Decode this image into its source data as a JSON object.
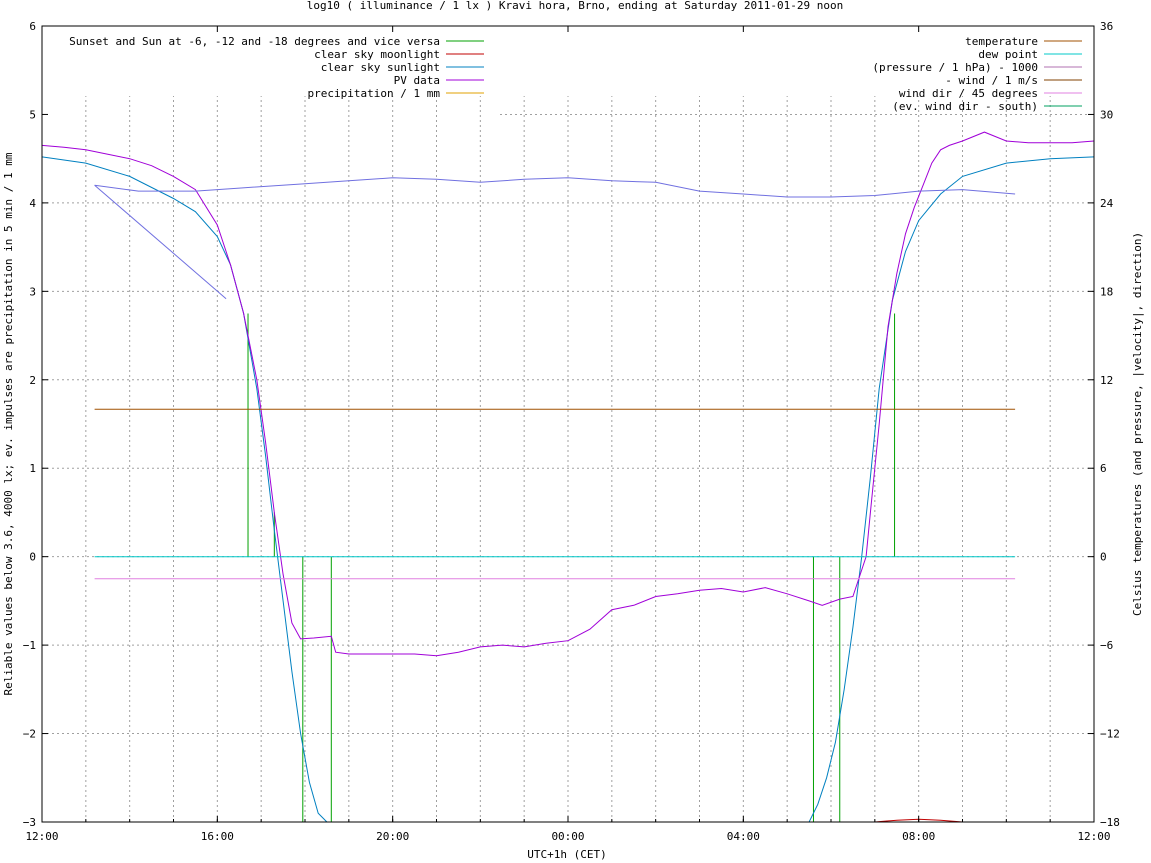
{
  "chart_data": {
    "type": "line",
    "title": "log10 ( illuminance / 1 lx ) Kravi hora, Brno, ending at Saturday 2011-01-29 noon",
    "xlabel": "UTC+1h (CET)",
    "ylabel": "Reliable values below 3.6, 4000 lx; ev. impulses are precipitation in 5 min / 1 mm",
    "y2label": "Celsius temperatures (and pressure, |velocity|, direction)",
    "x_unit": "hours from 2011-01-28 12:00 CET",
    "xlim": [
      0,
      24
    ],
    "ylim": [
      -3,
      6
    ],
    "y2lim": [
      -18,
      36
    ],
    "x_ticks": [
      {
        "x": 0,
        "label": "12:00"
      },
      {
        "x": 4,
        "label": "16:00"
      },
      {
        "x": 8,
        "label": "20:00"
      },
      {
        "x": 12,
        "label": "00:00"
      },
      {
        "x": 16,
        "label": "04:00"
      },
      {
        "x": 20,
        "label": "08:00"
      },
      {
        "x": 24,
        "label": "12:00"
      }
    ],
    "y_ticks": [
      -3,
      -2,
      -1,
      0,
      1,
      2,
      3,
      4,
      5,
      6
    ],
    "y2_ticks": [
      -18,
      -12,
      -6,
      0,
      6,
      12,
      18,
      24,
      30,
      36
    ],
    "grid": true,
    "legend_left": [
      {
        "label": "Sunset and Sun at -6, -12 and -18 degrees and vice versa",
        "color": "#00a000"
      },
      {
        "label": "clear sky moonlight",
        "color": "#c00000"
      },
      {
        "label": "clear sky sunlight",
        "color": "#0080c0"
      },
      {
        "label": "PV data",
        "color": "#a000d8"
      },
      {
        "label": "precipitation / 1 mm",
        "color": "#e0a000"
      }
    ],
    "legend_right": [
      {
        "label": "temperature",
        "color": "#a05000"
      },
      {
        "label": "dew point",
        "color": "#00c8c8"
      },
      {
        "label": "(pressure / 1 hPa) - 1000",
        "color": "#b070b0"
      },
      {
        "label": "- wind / 1 m/s",
        "color": "#804000"
      },
      {
        "label": "wind dir / 45 degrees",
        "color": "#e080e0"
      },
      {
        "label": "(ev. wind dir - south)",
        "color": "#00a060"
      }
    ],
    "series": [
      {
        "name": "Sunset and Sun at -6, -12 and -18 degrees and vice versa",
        "color": "#00a000",
        "kind": "impulse",
        "axis": "y",
        "x": [
          4.7,
          5.3,
          5.95,
          6.6,
          17.6,
          18.2,
          18.85,
          19.45
        ],
        "values": [
          2.75,
          0.5,
          -3,
          -3,
          -3,
          -3,
          0,
          2.75
        ]
      },
      {
        "name": "clear sky moonlight",
        "color": "#c00000",
        "axis": "y",
        "x": [
          19.0,
          19.5,
          20.0,
          20.5,
          21.0
        ],
        "values": [
          -3,
          -2.98,
          -2.97,
          -2.98,
          -3
        ]
      },
      {
        "name": "clear sky sunlight",
        "color": "#0080c0",
        "axis": "y",
        "x": [
          0,
          1,
          2,
          3,
          3.5,
          4,
          4.3,
          4.6,
          4.9,
          5.1,
          5.3,
          5.5,
          5.7,
          5.9,
          6.1,
          6.3,
          6.5,
          17.5,
          17.7,
          17.9,
          18.1,
          18.3,
          18.5,
          18.7,
          18.9,
          19.1,
          19.4,
          19.7,
          20.0,
          20.5,
          21.0,
          22.0,
          23.0,
          24.0
        ],
        "values": [
          4.52,
          4.45,
          4.3,
          4.05,
          3.9,
          3.62,
          3.3,
          2.75,
          1.9,
          1.15,
          0.3,
          -0.5,
          -1.3,
          -2.0,
          -2.55,
          -2.9,
          -3.0,
          -3.0,
          -2.8,
          -2.5,
          -2.1,
          -1.5,
          -0.8,
          0.0,
          0.9,
          1.9,
          2.9,
          3.45,
          3.8,
          4.1,
          4.3,
          4.45,
          4.5,
          4.52
        ]
      },
      {
        "name": "PV data",
        "color": "#a000d8",
        "axis": "y",
        "x": [
          0,
          0.5,
          1,
          1.5,
          2,
          2.5,
          3,
          3.5,
          4,
          4.3,
          4.6,
          4.9,
          5.1,
          5.3,
          5.5,
          5.7,
          5.9,
          6.2,
          6.6,
          6.7,
          7.0,
          7.5,
          8.0,
          8.5,
          9.0,
          9.5,
          10.0,
          10.5,
          11.0,
          11.5,
          12.0,
          12.5,
          13.0,
          13.5,
          14.0,
          14.5,
          15.0,
          15.5,
          16.0,
          16.5,
          17.0,
          17.5,
          17.8,
          18.2,
          18.5,
          18.8,
          18.9,
          19.1,
          19.3,
          19.5,
          19.7,
          19.9,
          20.1,
          20.3,
          20.5,
          20.7,
          21.0,
          21.5,
          22.0,
          22.5,
          23.0,
          23.5,
          24.0
        ],
        "values": [
          4.65,
          4.63,
          4.6,
          4.55,
          4.5,
          4.42,
          4.3,
          4.15,
          3.75,
          3.3,
          2.75,
          2.0,
          1.3,
          0.5,
          -0.2,
          -0.75,
          -0.93,
          -0.92,
          -0.9,
          -1.08,
          -1.1,
          -1.1,
          -1.1,
          -1.1,
          -1.12,
          -1.08,
          -1.02,
          -1.0,
          -1.02,
          -0.98,
          -0.95,
          -0.82,
          -0.6,
          -0.55,
          -0.45,
          -0.42,
          -0.38,
          -0.36,
          -0.4,
          -0.35,
          -0.42,
          -0.5,
          -0.55,
          -0.48,
          -0.45,
          0.0,
          0.5,
          1.5,
          2.6,
          3.2,
          3.65,
          3.95,
          4.2,
          4.45,
          4.6,
          4.65,
          4.7,
          4.8,
          4.7,
          4.68,
          4.68,
          4.68,
          4.7
        ]
      },
      {
        "name": "temperature",
        "color": "#a05000",
        "axis": "y2",
        "x": [
          1.2,
          22.2
        ],
        "values": [
          10.0,
          10.0
        ]
      },
      {
        "name": "dew point",
        "color": "#00c8c8",
        "axis": "y2",
        "x": [
          1.2,
          22.2
        ],
        "values": [
          0.0,
          0.0
        ]
      },
      {
        "name": "(pressure / 1 hPa) - 1000",
        "color": "#7070e0",
        "axis": "y2",
        "x": [
          1.2,
          2.2,
          3.5,
          4.5,
          6.0,
          7.0,
          8.0,
          9.0,
          10.0,
          11.0,
          12.0,
          13.0,
          14.0,
          15.0,
          16.0,
          17.0,
          18.0,
          19.0,
          20.0,
          21.0,
          22.2
        ],
        "values": [
          25.2,
          24.8,
          24.8,
          25.0,
          25.3,
          25.5,
          25.7,
          25.6,
          25.4,
          25.6,
          25.7,
          25.5,
          25.4,
          24.8,
          24.6,
          24.4,
          24.4,
          24.5,
          24.8,
          24.9,
          24.6
        ]
      },
      {
        "name": "- wind / 1 m/s",
        "color": "#7070e0",
        "axis": "y2",
        "x": [
          1.2,
          4.2
        ],
        "values": [
          25.2,
          17.5
        ]
      },
      {
        "name": "wind dir / 45 degrees",
        "color": "#e080e0",
        "axis": "y2",
        "x": [
          1.2,
          22.2
        ],
        "values": [
          -1.5,
          -1.5
        ]
      }
    ]
  }
}
